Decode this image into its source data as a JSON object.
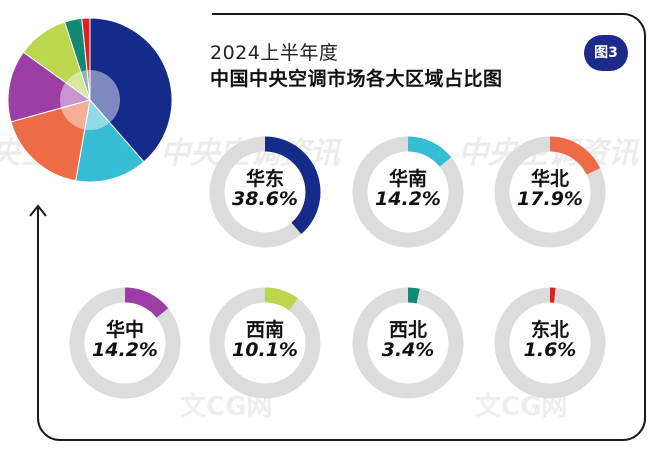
{
  "header": {
    "line1": "2024上半年度",
    "line2": "中国中央空调市场各大区域占比图",
    "badge": "图3"
  },
  "watermarks": {
    "text1": "中央空调资讯",
    "text2": "文CG网"
  },
  "colors": {
    "华东": "#142b8a",
    "华南": "#37bcd6",
    "华北": "#ee6c45",
    "华中": "#9b3ea6",
    "西南": "#bcd64d",
    "西北": "#128a73",
    "东北": "#e01f27",
    "ring_track": "#dcdcdc",
    "badge": "#1c2a8a"
  },
  "chart_data": {
    "type": "pie",
    "title": "中国中央空调市场各大区域占比图",
    "subtitle": "2024上半年度",
    "unit": "%",
    "categories": [
      "华东",
      "华南",
      "华北",
      "华中",
      "西南",
      "西北",
      "东北"
    ],
    "values": [
      38.6,
      14.2,
      17.9,
      14.2,
      10.1,
      3.4,
      1.6
    ],
    "labels": [
      "38.6%",
      "14.2%",
      "17.9%",
      "14.2%",
      "10.1%",
      "3.4%",
      "1.6%"
    ]
  }
}
